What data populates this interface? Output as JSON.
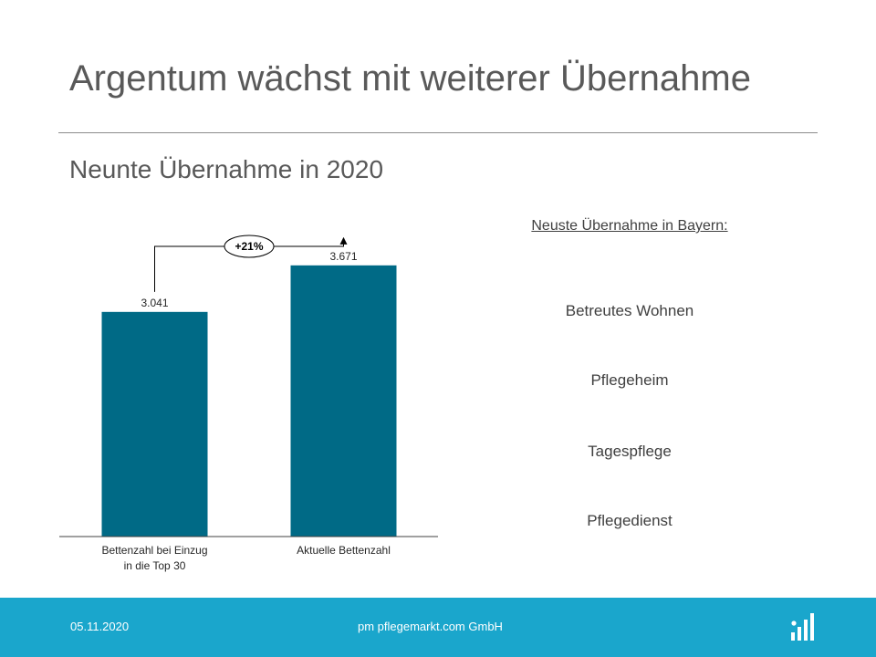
{
  "slide": {
    "title": "Argentum wächst mit weiterer Übernahme",
    "subtitle": "Neunte Übernahme in 2020"
  },
  "chart_data": {
    "type": "bar",
    "categories": [
      "Bettenzahl bei Einzug in die Top 30",
      "Aktuelle Bettenzahl"
    ],
    "category_lines": [
      [
        "Bettenzahl bei Einzug",
        "in die Top 30"
      ],
      [
        "Aktuelle Bettenzahl"
      ]
    ],
    "values": [
      3041,
      3671
    ],
    "value_labels": [
      "3.041",
      "3.671"
    ],
    "growth_annotation": "+21%",
    "ylim": [
      0,
      4200
    ],
    "bar_color": "#006a86",
    "grid": false
  },
  "right_panel": {
    "heading": "Neuste Übernahme in Bayern:",
    "items": [
      "Betreutes Wohnen",
      "Pflegeheim",
      "Tagespflege",
      "Pflegedienst"
    ]
  },
  "footer": {
    "date": "05.11.2020",
    "company": "pm pflegemarkt.com GmbH",
    "logo_icon": "pflegemarkt-logo-icon",
    "background": "#1aa6cc"
  }
}
